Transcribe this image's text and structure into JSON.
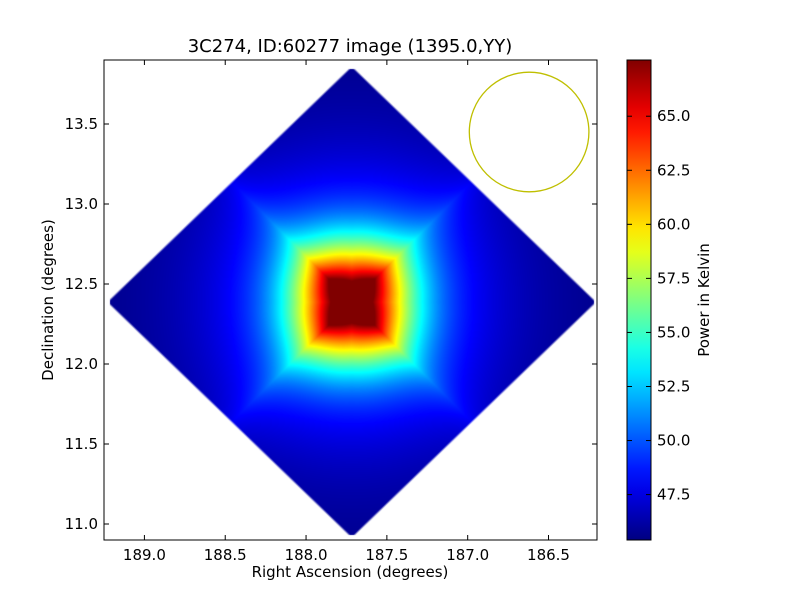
{
  "chart_data": {
    "type": "heatmap",
    "title": "3C274, ID:60277 image (1395.0,YY)",
    "xlabel": "Right Ascension (degrees)",
    "ylabel": "Declination (degrees)",
    "colorbar_label": "Power in Kelvin",
    "colormap": "jet",
    "xlim": [
      189.25,
      186.2
    ],
    "ylim": [
      10.9,
      13.9
    ],
    "x_ticks": [
      189.0,
      188.5,
      188.0,
      187.5,
      187.0,
      186.5
    ],
    "x_tick_labels": [
      "189.0",
      "188.5",
      "188.0",
      "187.5",
      "187.0",
      "186.5"
    ],
    "y_ticks": [
      11.0,
      11.5,
      12.0,
      12.5,
      13.0,
      13.5
    ],
    "y_tick_labels": [
      "11.0",
      "11.5",
      "12.0",
      "12.5",
      "13.0",
      "13.5"
    ],
    "value_range": [
      45.4,
      67.6
    ],
    "colorbar_ticks": [
      47.5,
      50.0,
      52.5,
      55.0,
      57.5,
      60.0,
      62.5,
      65.0
    ],
    "colorbar_tick_labels": [
      "47.5",
      "50.0",
      "52.5",
      "55.0",
      "57.5",
      "60.0",
      "62.5",
      "65.0"
    ],
    "footprint": {
      "shape": "diamond",
      "center_ra": 187.72,
      "center_dec": 12.39,
      "half_extent_ra": 1.52,
      "half_extent_dec": 1.48
    },
    "peak": {
      "ra": 187.72,
      "dec": 12.39,
      "value": 67.6
    },
    "background_value": 45.6,
    "beam": {
      "center_ra": 186.62,
      "center_dec": 13.45,
      "radius_deg": 0.37,
      "color": "#bfbf00"
    }
  }
}
